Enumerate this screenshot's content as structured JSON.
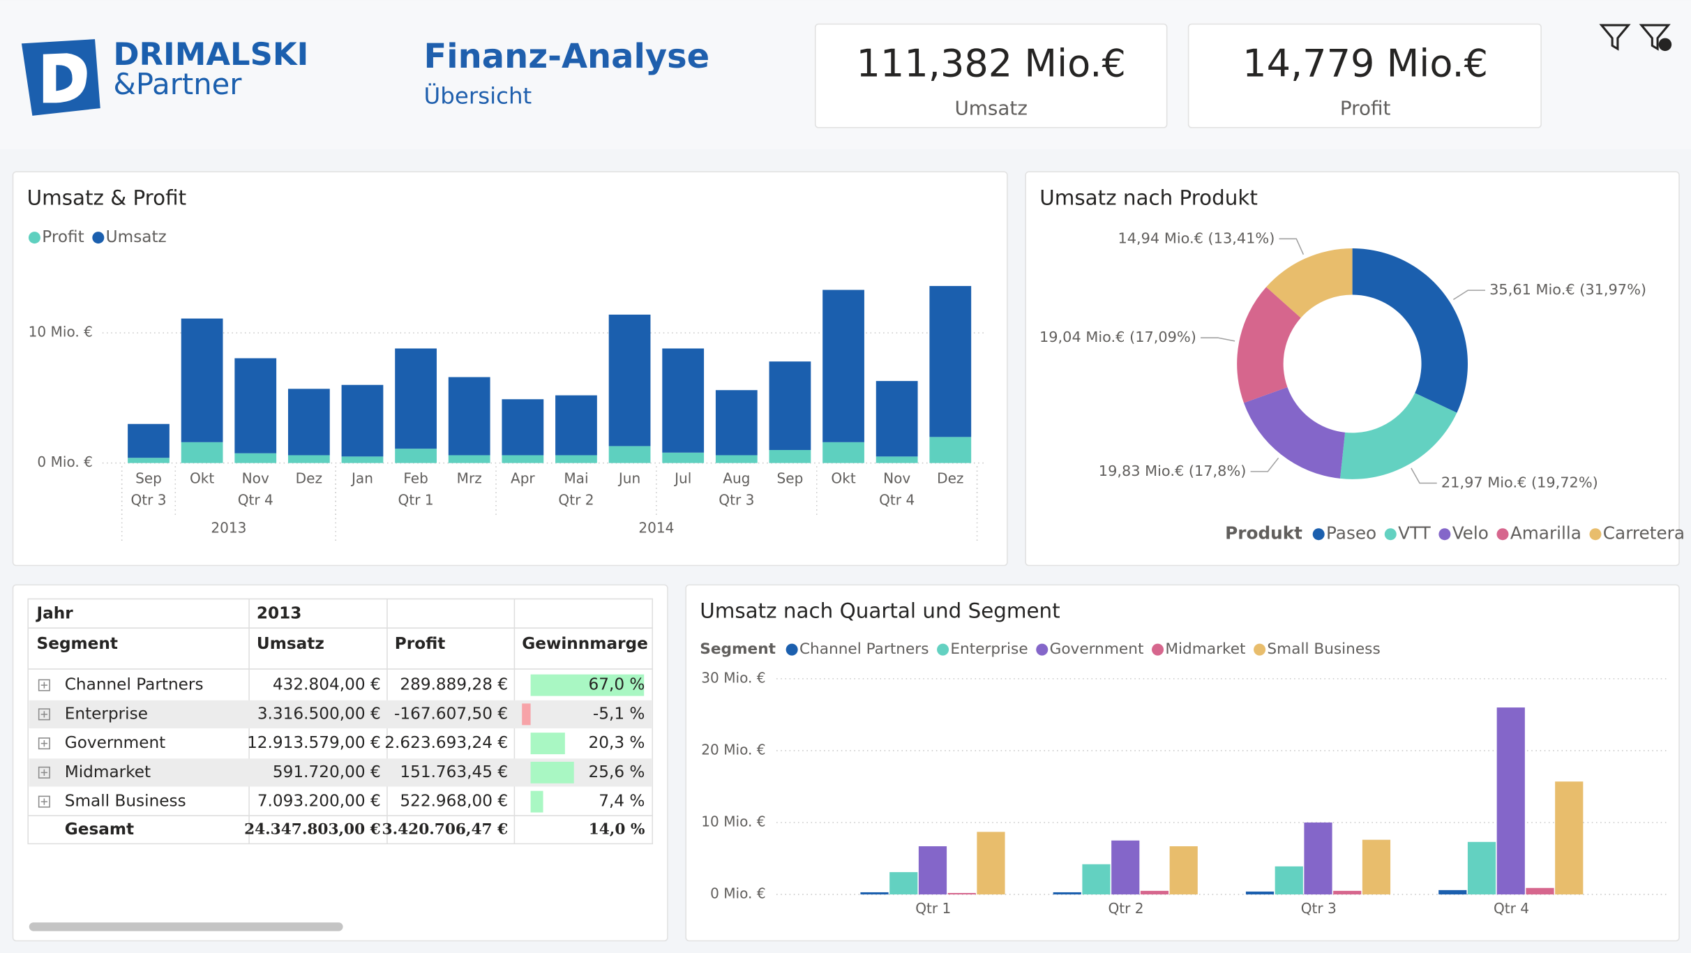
{
  "header": {
    "logo_line1": "DRIMALSKI",
    "logo_line2": "&Partner",
    "title": "Finanz-Analyse",
    "subtitle": "Übersicht"
  },
  "kpis": [
    {
      "value": "111,382 Mio.€",
      "label": "Umsatz"
    },
    {
      "value": "14,779 Mio.€",
      "label": "Profit"
    }
  ],
  "chart_data": [
    {
      "type": "bar",
      "stacked": true,
      "title": "Umsatz & Profit",
      "categories": [
        "Sep",
        "Okt",
        "Nov",
        "Dez",
        "Jan",
        "Feb",
        "Mrz",
        "Apr",
        "Mai",
        "Jun",
        "Jul",
        "Aug",
        "Sep",
        "Okt",
        "Nov",
        "Dez"
      ],
      "category_quarters": [
        "Qtr 3",
        "Qtr 4",
        "Qtr 4",
        "Qtr 4",
        "Qtr 1",
        "Qtr 1",
        "Qtr 1",
        "Qtr 2",
        "Qtr 2",
        "Qtr 2",
        "Qtr 3",
        "Qtr 3",
        "Qtr 3",
        "Qtr 4",
        "Qtr 4",
        "Qtr 4"
      ],
      "category_years": [
        "2013",
        "2013",
        "2013",
        "2013",
        "2014",
        "2014",
        "2014",
        "2014",
        "2014",
        "2014",
        "2014",
        "2014",
        "2014",
        "2014",
        "2014",
        "2014"
      ],
      "series": [
        {
          "name": "Profit",
          "color": "#5ed0bf",
          "values": [
            0.4,
            1.6,
            0.75,
            0.6,
            0.5,
            1.1,
            0.6,
            0.6,
            0.6,
            1.3,
            0.8,
            0.6,
            1.0,
            1.6,
            0.5,
            2.0
          ]
        },
        {
          "name": "Umsatz",
          "color": "#1b5fae",
          "values": [
            2.6,
            9.5,
            7.3,
            5.1,
            5.5,
            7.7,
            6.0,
            4.3,
            4.6,
            10.1,
            8.0,
            5.0,
            6.8,
            11.7,
            5.8,
            11.6
          ]
        }
      ],
      "ylim": [
        0,
        14.5
      ],
      "yticks": [
        {
          "value": 0,
          "label": "0 Mio. €"
        },
        {
          "value": 10,
          "label": "10 Mio. €"
        }
      ],
      "grid": true,
      "legend": "top-left"
    },
    {
      "type": "pie",
      "donut": true,
      "title": "Umsatz nach Produkt",
      "legend_title": "Produkt",
      "categories": [
        "Paseo",
        "VTT",
        "Velo",
        "Amarilla",
        "Carretera"
      ],
      "values": [
        35.61,
        21.97,
        19.83,
        19.04,
        14.94
      ],
      "value_labels": [
        "35,61 Mio.€ (31,97%)",
        "21,97 Mio.€ (19,72%)",
        "19,83 Mio.€ (17,8%)",
        "19,04 Mio.€ (17,09%)",
        "14,94 Mio.€ (13,41%)"
      ],
      "colors": [
        "#1b5fae",
        "#63d1c1",
        "#8466c9",
        "#d6668d",
        "#e8bd6c"
      ],
      "legend": "bottom-right"
    },
    {
      "type": "bar",
      "title": "Umsatz nach Quartal und Segment",
      "legend_title": "Segment",
      "categories": [
        "Qtr 1",
        "Qtr 2",
        "Qtr 3",
        "Qtr 4"
      ],
      "series": [
        {
          "name": "Channel Partners",
          "color": "#1b5fae",
          "values": [
            0.3,
            0.3,
            0.4,
            0.6
          ]
        },
        {
          "name": "Enterprise",
          "color": "#63d1c1",
          "values": [
            3.1,
            4.2,
            3.9,
            7.3
          ]
        },
        {
          "name": "Government",
          "color": "#8466c9",
          "values": [
            6.7,
            7.5,
            10.0,
            26.0
          ]
        },
        {
          "name": "Midmarket",
          "color": "#d6668d",
          "values": [
            0.2,
            0.5,
            0.5,
            0.9
          ]
        },
        {
          "name": "Small Business",
          "color": "#e8bd6c",
          "values": [
            8.7,
            6.7,
            7.6,
            15.7
          ]
        }
      ],
      "ylim": [
        0,
        30
      ],
      "yticks": [
        {
          "value": 0,
          "label": "0 Mio. €"
        },
        {
          "value": 10,
          "label": "10 Mio. €"
        },
        {
          "value": 20,
          "label": "20 Mio. €"
        },
        {
          "value": 30,
          "label": "30 Mio. €"
        }
      ],
      "grid": true,
      "legend": "top-left"
    }
  ],
  "table": {
    "header": [
      "Jahr",
      "2013"
    ],
    "columns": [
      "Segment",
      "Umsatz",
      "Profit",
      "Gewinnmarge"
    ],
    "bar_colors": {
      "positive": "#a9f7c3",
      "negative": "#f7a3a8"
    },
    "rows": [
      {
        "segment": "Channel Partners",
        "umsatz": "432.804,00 €",
        "profit": "289.889,28 €",
        "gewinnmarge": {
          "value": 67.0,
          "label": "67,0 %"
        }
      },
      {
        "segment": "Enterprise",
        "umsatz": "3.316.500,00 €",
        "profit": "-167.607,50 €",
        "gewinnmarge": {
          "value": -5.1,
          "label": "-5,1 %"
        }
      },
      {
        "segment": "Government",
        "umsatz": "12.913.579,00 €",
        "profit": "2.623.693,24 €",
        "gewinnmarge": {
          "value": 20.3,
          "label": "20,3 %"
        }
      },
      {
        "segment": "Midmarket",
        "umsatz": "591.720,00 €",
        "profit": "151.763,45 €",
        "gewinnmarge": {
          "value": 25.6,
          "label": "25,6 %"
        }
      },
      {
        "segment": "Small Business",
        "umsatz": "7.093.200,00 €",
        "profit": "522.968,00 €",
        "gewinnmarge": {
          "value": 7.4,
          "label": "7,4 %"
        }
      }
    ],
    "total": {
      "segment": "Gesamt",
      "umsatz": "24.347.803,00 €",
      "profit": "3.420.706,47 €",
      "gewinnmarge": "14,0 %"
    }
  }
}
